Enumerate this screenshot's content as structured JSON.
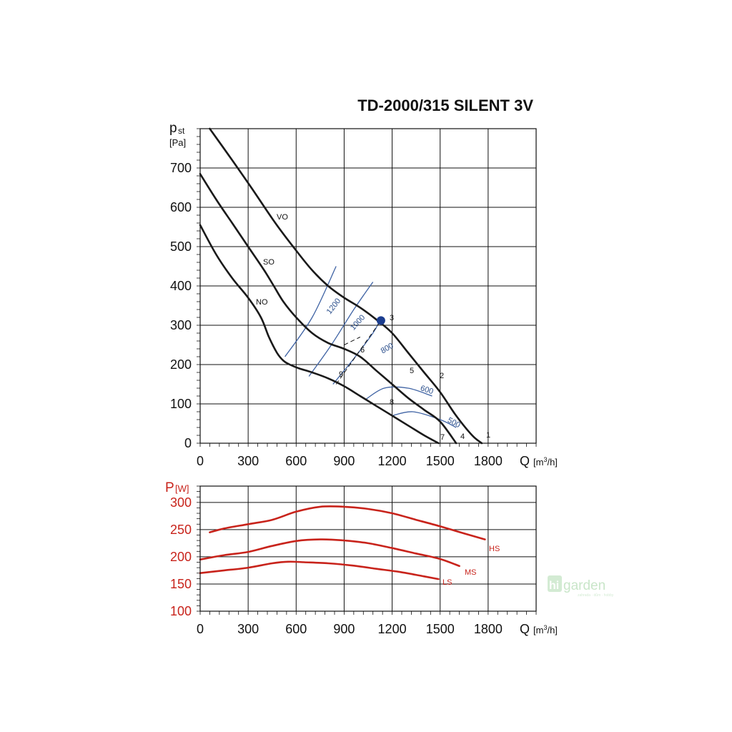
{
  "chart_data": [
    {
      "type": "line",
      "title": "TD-2000/315 SILENT 3V",
      "ylabel_main": "p",
      "ylabel_sub": "st",
      "ylabel_unit": "[Pa]",
      "xlabel": "Q",
      "xlabel_unit_pre": "[m",
      "xlabel_unit_sup": "3",
      "xlabel_unit_post": "/h]",
      "xlim": [
        0,
        2100
      ],
      "ylim": [
        0,
        800
      ],
      "x_ticks": [
        0,
        300,
        600,
        900,
        1200,
        1500,
        1800
      ],
      "y_ticks": [
        0,
        100,
        200,
        300,
        400,
        500,
        600,
        700
      ],
      "grid": true,
      "series": [
        {
          "name": "VO",
          "x": [
            60,
            200,
            320,
            470,
            600,
            700,
            800,
            900,
            1000,
            1100,
            1200,
            1300,
            1400,
            1500,
            1600,
            1700,
            1760
          ],
          "y": [
            800,
            720,
            650,
            560,
            490,
            440,
            400,
            370,
            345,
            315,
            280,
            230,
            180,
            130,
            70,
            20,
            0
          ]
        },
        {
          "name": "SO",
          "x": [
            0,
            100,
            200,
            300,
            400,
            460,
            520,
            600,
            700,
            800,
            900,
            1000,
            1100,
            1200,
            1300,
            1400,
            1500,
            1600
          ],
          "y": [
            685,
            620,
            560,
            500,
            440,
            400,
            360,
            320,
            280,
            255,
            240,
            220,
            185,
            150,
            115,
            85,
            55,
            0
          ]
        },
        {
          "name": "NO",
          "x": [
            0,
            100,
            200,
            300,
            380,
            430,
            480,
            520,
            560,
            620,
            700,
            800,
            900,
            1000,
            1100,
            1200,
            1300,
            1400,
            1490
          ],
          "y": [
            555,
            480,
            420,
            370,
            320,
            270,
            230,
            210,
            200,
            190,
            180,
            165,
            145,
            120,
            95,
            70,
            45,
            20,
            0
          ]
        }
      ],
      "point_labels": [
        "1",
        "2",
        "3",
        "4",
        "5",
        "6",
        "7",
        "8",
        "9"
      ],
      "iso_lines": [
        "1200",
        "1000",
        "800",
        "600",
        "500"
      ],
      "operating_point": {
        "x": 1130,
        "y": 312,
        "color": "#1b3d8f"
      }
    },
    {
      "type": "line",
      "ylabel_main": "P",
      "ylabel_unit": "[W]",
      "xlabel": "Q",
      "xlabel_unit_pre": "[m",
      "xlabel_unit_sup": "3",
      "xlabel_unit_post": "/h]",
      "xlim": [
        0,
        2100
      ],
      "ylim": [
        100,
        330
      ],
      "x_ticks": [
        0,
        300,
        600,
        900,
        1200,
        1500,
        1800
      ],
      "y_ticks": [
        100,
        150,
        200,
        250,
        300
      ],
      "grid": true,
      "color": "#c8231b",
      "series": [
        {
          "name": "HS",
          "x": [
            60,
            150,
            300,
            450,
            600,
            750,
            900,
            1050,
            1200,
            1350,
            1500,
            1650,
            1780
          ],
          "y": [
            245,
            252,
            260,
            268,
            283,
            292,
            292,
            288,
            280,
            268,
            256,
            243,
            232
          ]
        },
        {
          "name": "MS",
          "x": [
            0,
            150,
            300,
            450,
            600,
            750,
            900,
            1050,
            1200,
            1350,
            1500,
            1620
          ],
          "y": [
            195,
            203,
            209,
            220,
            229,
            232,
            230,
            225,
            216,
            206,
            196,
            183
          ]
        },
        {
          "name": "LS",
          "x": [
            0,
            150,
            300,
            450,
            550,
            650,
            800,
            950,
            1100,
            1250,
            1400,
            1490
          ],
          "y": [
            170,
            175,
            180,
            188,
            191,
            190,
            188,
            184,
            178,
            172,
            164,
            159
          ]
        }
      ]
    }
  ],
  "watermark": {
    "part1": "hi",
    "part2": "garden",
    "tagline": "zahrada · dům · hobby"
  }
}
